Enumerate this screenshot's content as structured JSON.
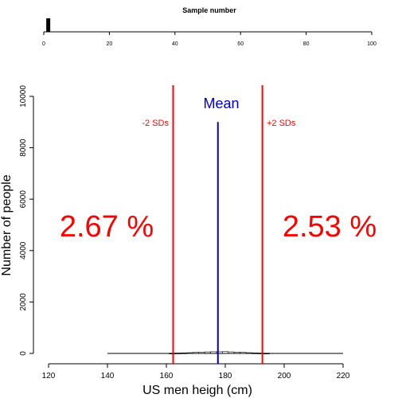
{
  "chart_data": [
    {
      "type": "bar",
      "title": "Sample number",
      "x": [
        1
      ],
      "values": [
        1
      ],
      "xlim": [
        0,
        100
      ],
      "ticks": [
        0,
        20,
        40,
        60,
        80,
        100
      ],
      "color": "#000000"
    },
    {
      "type": "histogram",
      "xlabel": "US men heigh (cm)",
      "ylabel": "Number of people",
      "xlim": [
        120,
        220
      ],
      "ylim": [
        0,
        10000
      ],
      "xticks": [
        120,
        140,
        160,
        180,
        200,
        220
      ],
      "yticks": [
        0,
        2000,
        4000,
        6000,
        8000,
        10000
      ],
      "bins": {
        "x": [
          162,
          164,
          166,
          168,
          170,
          172,
          174,
          176,
          178,
          180,
          182,
          184,
          186,
          188,
          190,
          192,
          194
        ],
        "values": [
          10,
          15,
          20,
          30,
          40,
          50,
          60,
          65,
          65,
          70,
          60,
          50,
          40,
          30,
          20,
          15,
          10
        ],
        "baseline_from": 140,
        "baseline_to": 220
      },
      "mean": {
        "x": 177.5,
        "y_top": 9000,
        "label": "Mean",
        "color": "#0000cc"
      },
      "minus_2sd": {
        "x": 162.3,
        "label": "-2 SDs",
        "color": "#ff0000"
      },
      "plus_2sd": {
        "x": 192.6,
        "label": "+2 SDs",
        "color": "#ff0000"
      },
      "left_tail_pct": "2.67 %",
      "right_tail_pct": "2.53 %"
    }
  ]
}
